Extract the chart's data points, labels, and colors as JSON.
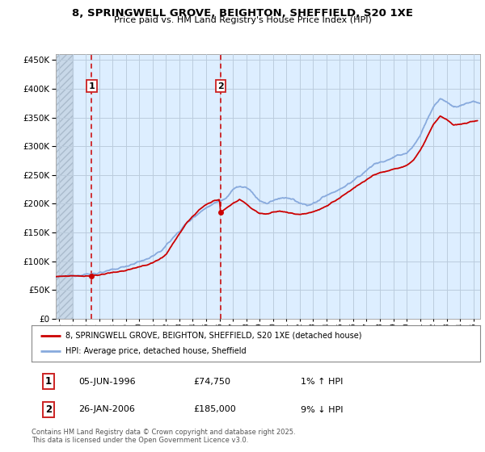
{
  "title": "8, SPRINGWELL GROVE, BEIGHTON, SHEFFIELD, S20 1XE",
  "subtitle": "Price paid vs. HM Land Registry's House Price Index (HPI)",
  "red_label": "8, SPRINGWELL GROVE, BEIGHTON, SHEFFIELD, S20 1XE (detached house)",
  "blue_label": "HPI: Average price, detached house, Sheffield",
  "annotation1_date": "05-JUN-1996",
  "annotation1_price": "£74,750",
  "annotation1_hpi": "1% ↑ HPI",
  "annotation2_date": "26-JAN-2006",
  "annotation2_price": "£185,000",
  "annotation2_hpi": "9% ↓ HPI",
  "footer": "Contains HM Land Registry data © Crown copyright and database right 2025.\nThis data is licensed under the Open Government Licence v3.0.",
  "ylim": [
    0,
    460000
  ],
  "xlim_start": 1993.75,
  "xlim_end": 2025.5,
  "sale1_year": 1996.44,
  "sale1_price": 74750,
  "sale2_year": 2006.08,
  "sale2_price": 185000,
  "hatch_end_year": 1995.0,
  "red_color": "#cc0000",
  "blue_color": "#88aadd",
  "bg_color": "#ddeeff",
  "hatch_color": "#c8d8e8",
  "grid_color": "#bbccdd",
  "anno_box_color": "#cc2222",
  "white": "#ffffff",
  "text_color": "#111111",
  "footer_color": "#555555",
  "hpi_anchors": [
    [
      1993.75,
      72000
    ],
    [
      1994.5,
      74000
    ],
    [
      1995.5,
      76000
    ],
    [
      1996.5,
      78000
    ],
    [
      1997.5,
      82000
    ],
    [
      1998.5,
      88000
    ],
    [
      1999.5,
      95000
    ],
    [
      2000.5,
      103000
    ],
    [
      2001.5,
      115000
    ],
    [
      2002.5,
      140000
    ],
    [
      2003.5,
      165000
    ],
    [
      2004.5,
      185000
    ],
    [
      2005.5,
      200000
    ],
    [
      2006.5,
      210000
    ],
    [
      2007.0,
      225000
    ],
    [
      2007.5,
      230000
    ],
    [
      2008.0,
      228000
    ],
    [
      2008.5,
      218000
    ],
    [
      2009.0,
      205000
    ],
    [
      2009.5,
      200000
    ],
    [
      2010.0,
      205000
    ],
    [
      2010.5,
      210000
    ],
    [
      2011.0,
      210000
    ],
    [
      2011.5,
      207000
    ],
    [
      2012.0,
      200000
    ],
    [
      2012.5,
      198000
    ],
    [
      2013.0,
      200000
    ],
    [
      2013.5,
      207000
    ],
    [
      2014.0,
      215000
    ],
    [
      2014.5,
      220000
    ],
    [
      2015.0,
      225000
    ],
    [
      2015.5,
      232000
    ],
    [
      2016.0,
      240000
    ],
    [
      2016.5,
      248000
    ],
    [
      2017.0,
      258000
    ],
    [
      2017.5,
      268000
    ],
    [
      2018.0,
      272000
    ],
    [
      2018.5,
      275000
    ],
    [
      2019.0,
      280000
    ],
    [
      2019.5,
      285000
    ],
    [
      2020.0,
      288000
    ],
    [
      2020.5,
      300000
    ],
    [
      2021.0,
      318000
    ],
    [
      2021.5,
      345000
    ],
    [
      2022.0,
      368000
    ],
    [
      2022.5,
      382000
    ],
    [
      2023.0,
      378000
    ],
    [
      2023.5,
      368000
    ],
    [
      2024.0,
      370000
    ],
    [
      2024.5,
      375000
    ],
    [
      2025.0,
      378000
    ],
    [
      2025.5,
      375000
    ]
  ],
  "red_anchors": [
    [
      1993.75,
      73000
    ],
    [
      1994.5,
      74000
    ],
    [
      1995.0,
      74500
    ],
    [
      1996.0,
      74000
    ],
    [
      1996.44,
      74750
    ],
    [
      1997.0,
      76000
    ],
    [
      1997.5,
      78000
    ],
    [
      1998.0,
      80000
    ],
    [
      1998.5,
      82000
    ],
    [
      1999.0,
      84000
    ],
    [
      1999.5,
      87000
    ],
    [
      2000.0,
      90000
    ],
    [
      2000.5,
      93000
    ],
    [
      2001.0,
      97000
    ],
    [
      2001.5,
      103000
    ],
    [
      2002.0,
      112000
    ],
    [
      2002.5,
      130000
    ],
    [
      2003.0,
      148000
    ],
    [
      2003.5,
      165000
    ],
    [
      2004.0,
      178000
    ],
    [
      2004.5,
      190000
    ],
    [
      2005.0,
      198000
    ],
    [
      2005.5,
      204000
    ],
    [
      2006.0,
      208000
    ],
    [
      2006.08,
      185000
    ],
    [
      2006.5,
      192000
    ],
    [
      2007.0,
      200000
    ],
    [
      2007.5,
      208000
    ],
    [
      2008.0,
      200000
    ],
    [
      2008.5,
      190000
    ],
    [
      2009.0,
      183000
    ],
    [
      2009.5,
      182000
    ],
    [
      2010.0,
      185000
    ],
    [
      2010.5,
      187000
    ],
    [
      2011.0,
      185000
    ],
    [
      2011.5,
      183000
    ],
    [
      2012.0,
      182000
    ],
    [
      2012.5,
      183000
    ],
    [
      2013.0,
      186000
    ],
    [
      2013.5,
      190000
    ],
    [
      2014.0,
      196000
    ],
    [
      2014.5,
      203000
    ],
    [
      2015.0,
      210000
    ],
    [
      2015.5,
      218000
    ],
    [
      2016.0,
      226000
    ],
    [
      2016.5,
      234000
    ],
    [
      2017.0,
      242000
    ],
    [
      2017.5,
      250000
    ],
    [
      2018.0,
      254000
    ],
    [
      2018.5,
      257000
    ],
    [
      2019.0,
      260000
    ],
    [
      2019.5,
      263000
    ],
    [
      2020.0,
      266000
    ],
    [
      2020.5,
      276000
    ],
    [
      2021.0,
      292000
    ],
    [
      2021.5,
      315000
    ],
    [
      2022.0,
      338000
    ],
    [
      2022.5,
      352000
    ],
    [
      2023.0,
      346000
    ],
    [
      2023.5,
      337000
    ],
    [
      2024.0,
      338000
    ],
    [
      2024.5,
      340000
    ],
    [
      2025.0,
      343000
    ],
    [
      2025.3,
      343000
    ]
  ]
}
